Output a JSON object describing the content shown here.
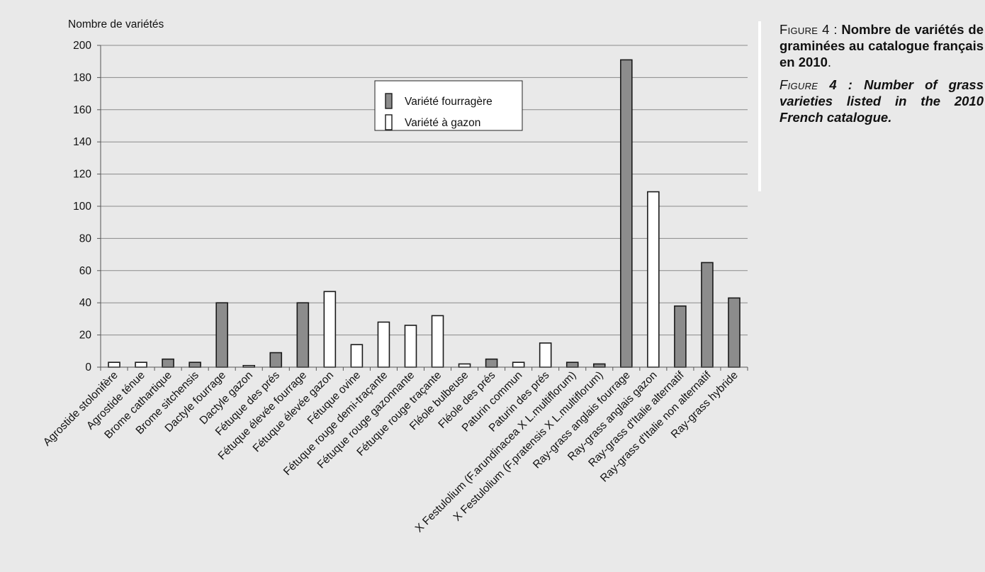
{
  "chart_data": {
    "type": "bar",
    "ylabel": "Nombre de variétés",
    "ylim": [
      0,
      200
    ],
    "yticks": [
      0,
      20,
      40,
      60,
      80,
      100,
      120,
      140,
      160,
      180,
      200
    ],
    "grid": true,
    "legend_position": "top-center",
    "categories": [
      "Agrostide stolonifère",
      "Agrostide ténue",
      "Brome cathartique",
      "Brome sitchensis",
      "Dactyle fourrage",
      "Dactyle gazon",
      "Fétuque des prés",
      "Fétuque élevée fourrage",
      "Fétuque élevée gazon",
      "Fétuque ovine",
      "Fétuque rouge demi-traçante",
      "Fétuque rouge gazonnante",
      "Fétuque rouge traçante",
      "Fléole bulbeuse",
      "Fléole des prés",
      "Paturin commun",
      "Paturin des prés",
      "X Festulolium (F.arundinacea X L.multiflorum)",
      "X Festulolium (F.pratensis X L.multiflorum)",
      "Ray-grass anglais fourrage",
      "Ray-grass anglais gazon",
      "Ray-grass d'Italie alternatif",
      "Ray-grass d'Italie non alternatif",
      "Ray-grass hybride"
    ],
    "values": [
      3,
      3,
      5,
      3,
      40,
      1,
      9,
      40,
      47,
      14,
      28,
      26,
      32,
      2,
      5,
      3,
      15,
      3,
      2,
      191,
      109,
      38,
      65,
      43
    ],
    "kinds": [
      "g",
      "g",
      "f",
      "f",
      "f",
      "g",
      "f",
      "f",
      "g",
      "g",
      "g",
      "g",
      "g",
      "g",
      "f",
      "g",
      "g",
      "f",
      "f",
      "f",
      "g",
      "f",
      "f",
      "f"
    ],
    "series": [
      {
        "key": "f",
        "name": "Variété fourragère",
        "color": "#8c8c8c"
      },
      {
        "key": "g",
        "name": "Variété à gazon",
        "color": "#ffffff"
      }
    ]
  },
  "caption": {
    "fr_prefix": "Figure",
    "fr_number": "4 :",
    "fr_text": "Nombre de variétés de graminées au catalogue français en 2010",
    "fr_end": ".",
    "en_prefix": "Figure",
    "en_number": "4 :",
    "en_text": "Number of grass varieties listed in the 2010 French catalogue",
    "en_end": "."
  }
}
